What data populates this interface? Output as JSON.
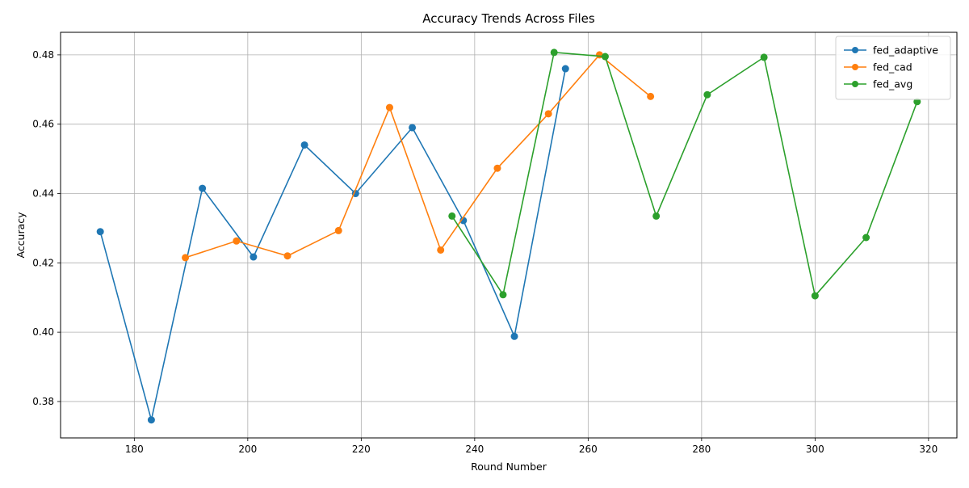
{
  "chart_data": {
    "type": "line",
    "title": "Accuracy Trends Across Files",
    "xlabel": "Round Number",
    "ylabel": "Accuracy",
    "xlim": [
      167,
      325
    ],
    "ylim": [
      0.3695,
      0.4865
    ],
    "xticks": [
      180,
      200,
      220,
      240,
      260,
      280,
      300,
      320
    ],
    "yticks": [
      0.38,
      0.4,
      0.42,
      0.44,
      0.46,
      0.48
    ],
    "xtick_labels": [
      "180",
      "200",
      "220",
      "240",
      "260",
      "280",
      "300",
      "320"
    ],
    "ytick_labels": [
      "0.38",
      "0.40",
      "0.42",
      "0.44",
      "0.46",
      "0.48"
    ],
    "grid": true,
    "legend_position": "top-right",
    "series": [
      {
        "name": "fed_adaptive",
        "color": "#1f77b4",
        "marker": "circle",
        "x": [
          174,
          183,
          192,
          201,
          210,
          219,
          229,
          238,
          247,
          256
        ],
        "y": [
          0.429,
          0.3747,
          0.4415,
          0.4217,
          0.454,
          0.44,
          0.459,
          0.4322,
          0.3988,
          0.476
        ]
      },
      {
        "name": "fed_cad",
        "color": "#ff7f0e",
        "marker": "circle",
        "x": [
          189,
          198,
          207,
          216,
          225,
          234,
          244,
          253,
          262,
          271
        ],
        "y": [
          0.4215,
          0.4263,
          0.422,
          0.4293,
          0.4648,
          0.4237,
          0.4473,
          0.463,
          0.48,
          0.468
        ]
      },
      {
        "name": "fed_avg",
        "color": "#2ca02c",
        "marker": "circle",
        "x": [
          236,
          245,
          254,
          263,
          272,
          281,
          291,
          300,
          309,
          318
        ],
        "y": [
          0.4335,
          0.4108,
          0.4807,
          0.4795,
          0.4335,
          0.4685,
          0.4793,
          0.4105,
          0.4273,
          0.4665
        ]
      }
    ]
  }
}
